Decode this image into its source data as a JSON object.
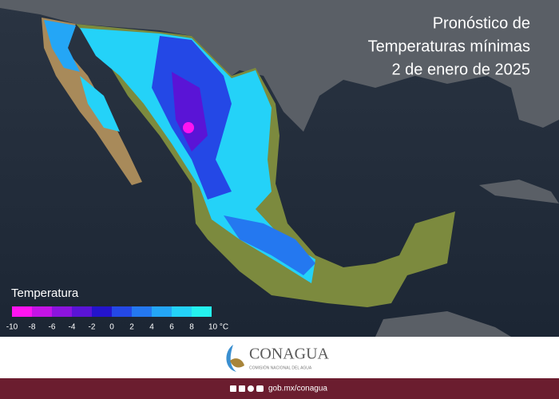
{
  "title": [
    "Pronóstico de",
    "Temperaturas mínimas",
    "2 de enero de 2025"
  ],
  "legend": {
    "title": "Temperatura",
    "ticks": [
      -10,
      -8,
      -6,
      -4,
      -2,
      0,
      2,
      4,
      6,
      8,
      {
        "value": 10,
        "label": "10 °C"
      }
    ],
    "colors": [
      "#ff14f0",
      "#c414e6",
      "#8c14de",
      "#5a14d6",
      "#2414cc",
      "#2448e6",
      "#2478f0",
      "#24a6f6",
      "#24d2f8",
      "#24f2ee"
    ]
  },
  "footer": {
    "brand": "CONAGUA",
    "subtitle": "COMISIÓN NACIONAL DEL AGUA",
    "url": "gob.mx/conagua"
  }
}
